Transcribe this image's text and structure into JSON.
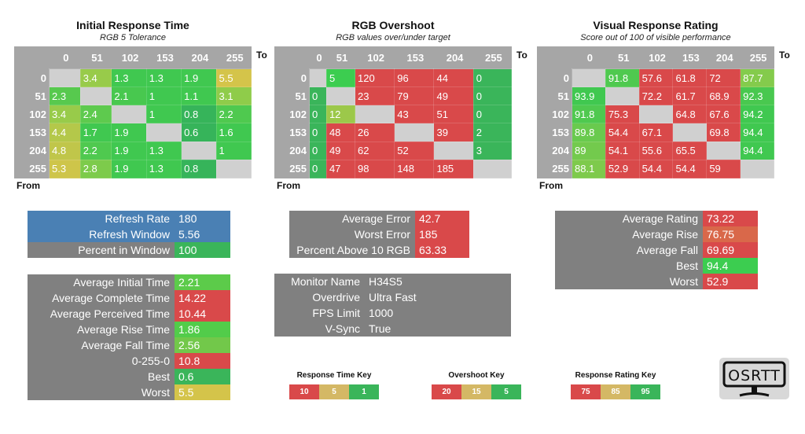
{
  "colors": {
    "red": "#d9494a",
    "yellow": "#d4b865",
    "green": "#3ab55a",
    "bright_green": "#3ccd50",
    "blue": "#4a80b4",
    "gray": "#808080",
    "header_gray": "#a6a6a6",
    "blank": "#d0d0d0",
    "orange": "#d9684a"
  },
  "axis": {
    "to": "To",
    "from": "From"
  },
  "levels": [
    "0",
    "51",
    "102",
    "153",
    "204",
    "255"
  ],
  "matrices": [
    {
      "title": "Initial Response Time",
      "subtitle": "RGB 5 Tolerance",
      "scale": "time",
      "rows": [
        [
          "",
          "3.4",
          "1.3",
          "1.3",
          "1.9",
          "5.5"
        ],
        [
          "2.3",
          "",
          "2.1",
          "1",
          "1.1",
          "3.1"
        ],
        [
          "3.4",
          "2.4",
          "",
          "1",
          "0.8",
          "2.2"
        ],
        [
          "4.4",
          "1.7",
          "1.9",
          "",
          "0.6",
          "1.6"
        ],
        [
          "4.8",
          "2.2",
          "1.9",
          "1.3",
          "",
          "1"
        ],
        [
          "5.3",
          "2.8",
          "1.9",
          "1.3",
          "0.8",
          ""
        ]
      ]
    },
    {
      "title": "RGB Overshoot",
      "subtitle": "RGB values over/under target",
      "scale": "overshoot",
      "rows": [
        [
          "",
          "5",
          "120",
          "96",
          "44",
          "0"
        ],
        [
          "0",
          "",
          "23",
          "79",
          "49",
          "0"
        ],
        [
          "0",
          "12",
          "",
          "43",
          "51",
          "0"
        ],
        [
          "0",
          "48",
          "26",
          "",
          "39",
          "2"
        ],
        [
          "0",
          "49",
          "62",
          "52",
          "",
          "3"
        ],
        [
          "0",
          "47",
          "98",
          "148",
          "185",
          ""
        ]
      ]
    },
    {
      "title": "Visual Response Rating",
      "subtitle": "Score out of 100 of visible performance",
      "scale": "rating",
      "rows": [
        [
          "",
          "91.8",
          "57.6",
          "61.8",
          "72",
          "87.7"
        ],
        [
          "93.9",
          "",
          "72.2",
          "61.7",
          "68.9",
          "92.3"
        ],
        [
          "91.8",
          "75.3",
          "",
          "64.8",
          "67.6",
          "94.2"
        ],
        [
          "89.8",
          "54.4",
          "67.1",
          "",
          "69.8",
          "94.4"
        ],
        [
          "89",
          "54.1",
          "55.6",
          "65.5",
          "",
          "94.4"
        ],
        [
          "88.1",
          "52.9",
          "54.4",
          "54.4",
          "59",
          ""
        ]
      ]
    }
  ],
  "refresh": [
    {
      "label": "Refresh Rate",
      "value": "180",
      "color": "#4a80b4",
      "lcolor": "#4a80b4"
    },
    {
      "label": "Refresh Window",
      "value": "5.56",
      "color": "#4a80b4",
      "lcolor": "#4a80b4"
    },
    {
      "label": "Percent in Window",
      "value": "100",
      "color": "#3ab55a",
      "lcolor": "#808080"
    }
  ],
  "times": [
    {
      "label": "Average Initial Time",
      "value": "2.21",
      "color": "#5ccb4a"
    },
    {
      "label": "Average Complete Time",
      "value": "14.22",
      "color": "#d9494a"
    },
    {
      "label": "Average Perceived Time",
      "value": "10.44",
      "color": "#d9494a"
    },
    {
      "label": "Average Rise Time",
      "value": "1.86",
      "color": "#52cc4a"
    },
    {
      "label": "Average Fall Time",
      "value": "2.56",
      "color": "#72c84a"
    },
    {
      "label": "0-255-0",
      "value": "10.8",
      "color": "#d9494a"
    },
    {
      "label": "Best",
      "value": "0.6",
      "color": "#3ab55a"
    },
    {
      "label": "Worst",
      "value": "5.5",
      "color": "#d4c44a"
    }
  ],
  "overshoot_stats": [
    {
      "label": "Average Error",
      "value": "42.7",
      "color": "#d9494a"
    },
    {
      "label": "Worst Error",
      "value": "185",
      "color": "#d9494a"
    },
    {
      "label": "Percent Above 10 RGB",
      "value": "63.33",
      "color": "#d9494a"
    }
  ],
  "monitor": [
    {
      "label": "Monitor Name",
      "value": "H34S5"
    },
    {
      "label": "Overdrive",
      "value": "Ultra Fast"
    },
    {
      "label": "FPS Limit",
      "value": "1000"
    },
    {
      "label": "V-Sync",
      "value": "True"
    }
  ],
  "rating_stats": [
    {
      "label": "Average Rating",
      "value": "73.22",
      "color": "#d9494a"
    },
    {
      "label": "Average Rise",
      "value": "76.75",
      "color": "#d9684a"
    },
    {
      "label": "Average Fall",
      "value": "69.69",
      "color": "#d9494a"
    },
    {
      "label": "Best",
      "value": "94.4",
      "color": "#3ccd50"
    },
    {
      "label": "Worst",
      "value": "52.9",
      "color": "#d9494a"
    }
  ],
  "keys": [
    {
      "title": "Response Time Key",
      "values": [
        "10",
        "5",
        "1"
      ]
    },
    {
      "title": "Overshoot Key",
      "values": [
        "20",
        "15",
        "5"
      ]
    },
    {
      "title": "Response Rating Key",
      "values": [
        "75",
        "85",
        "95"
      ]
    }
  ],
  "logo": {
    "text": "OSRTT"
  }
}
